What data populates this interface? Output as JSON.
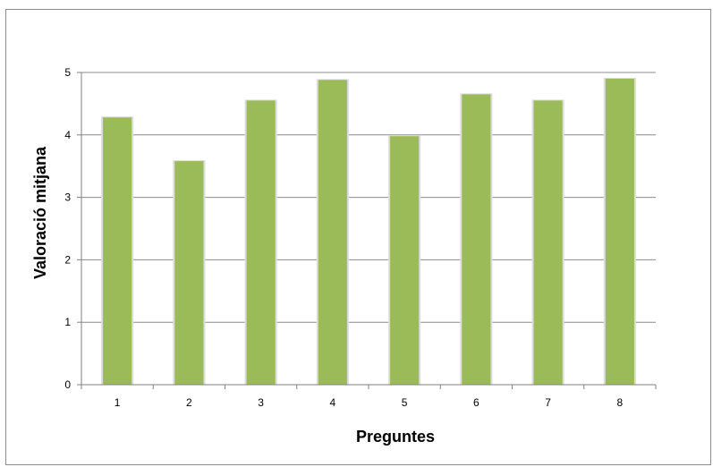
{
  "chart_data": {
    "type": "bar",
    "title": "",
    "xlabel": "Preguntes",
    "ylabel": "Valoració mitjana",
    "categories": [
      "1",
      "2",
      "3",
      "4",
      "5",
      "6",
      "7",
      "8"
    ],
    "values": [
      4.28,
      3.58,
      4.55,
      4.88,
      3.98,
      4.65,
      4.55,
      4.9
    ],
    "ylim": [
      0,
      5
    ],
    "yticks": [
      "0",
      "1",
      "2",
      "3",
      "4",
      "5"
    ],
    "grid": true,
    "legend": "none",
    "bar_color": "#9bbb59",
    "bar_edge_color": "#dcdcdc"
  }
}
